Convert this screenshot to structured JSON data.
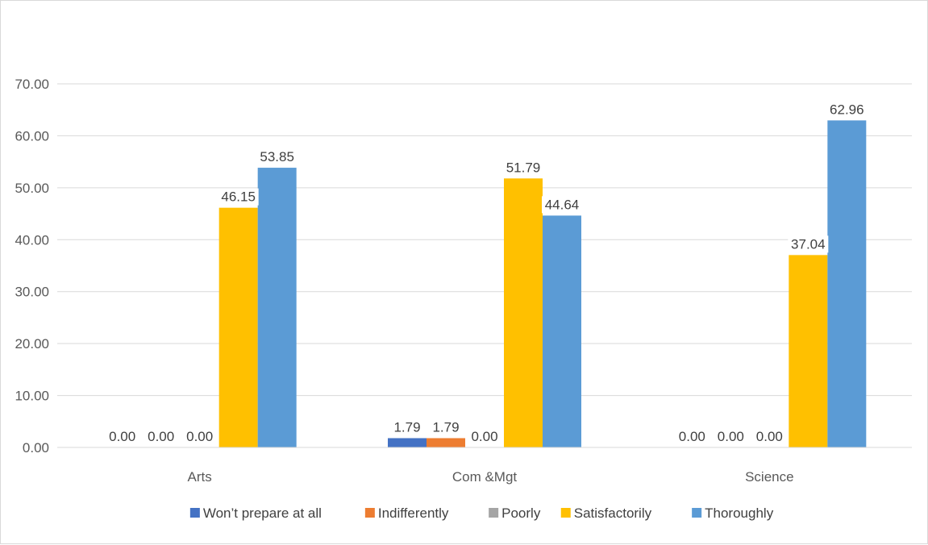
{
  "chart_data": {
    "type": "bar",
    "title": "",
    "xlabel": "",
    "ylabel": "",
    "categories": [
      "Arts",
      "Com &Mgt",
      "Science"
    ],
    "series": [
      {
        "name": "Won’t prepare at all",
        "color": "#4472c4",
        "values": [
          0.0,
          1.79,
          0.0
        ],
        "labels": [
          "0.00",
          "1.79",
          "0.00"
        ]
      },
      {
        "name": "Indifferently",
        "color": "#ed7d31",
        "values": [
          0.0,
          1.79,
          0.0
        ],
        "labels": [
          "0.00",
          "1.79",
          "0.00"
        ]
      },
      {
        "name": "Poorly",
        "color": "#a5a5a5",
        "values": [
          0.0,
          0.0,
          0.0
        ],
        "labels": [
          "0.00",
          "0.00",
          "0.00"
        ]
      },
      {
        "name": "Satisfactorily",
        "color": "#ffc000",
        "values": [
          46.15,
          51.79,
          37.04
        ],
        "labels": [
          "46.15",
          "51.79",
          "37.04"
        ]
      },
      {
        "name": "Thoroughly",
        "color": "#5b9bd5",
        "values": [
          53.85,
          44.64,
          62.96
        ],
        "labels": [
          "53.85",
          "44.64",
          "62.96"
        ]
      }
    ],
    "ylim": [
      0,
      70
    ],
    "yticks": [
      "0.00",
      "10.00",
      "20.00",
      "30.00",
      "40.00",
      "50.00",
      "60.00",
      "70.00"
    ],
    "grid": true,
    "legend_position": "bottom"
  }
}
